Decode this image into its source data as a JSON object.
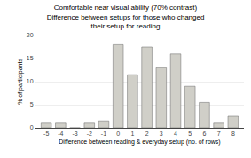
{
  "chart_data": {
    "type": "bar",
    "title": "Comfortable near visual ability (70% contrast)\nDifference between setups for those who changed\ntheir setup for reading",
    "xlabel": "Difference between reading & everyday setup (no. of rows)",
    "ylabel": "% of participants",
    "x": [
      -5,
      -4,
      -3,
      -2,
      -1,
      0,
      1,
      2,
      3,
      4,
      5,
      6,
      7,
      8
    ],
    "values": [
      1.0,
      1.0,
      0.0,
      1.0,
      1.5,
      18.0,
      11.5,
      17.5,
      13.0,
      16.0,
      9.0,
      5.5,
      1.0,
      2.5
    ],
    "color": "#d0cfc8",
    "xlim": [
      -5.75,
      8.75
    ],
    "xticks": [
      -5,
      -4,
      -3,
      -2,
      -1,
      0,
      1,
      2,
      3,
      4,
      5,
      6,
      7,
      8
    ],
    "ylim": [
      0,
      20
    ],
    "yticks": [
      0,
      5,
      10,
      15,
      20
    ],
    "grid": true
  }
}
